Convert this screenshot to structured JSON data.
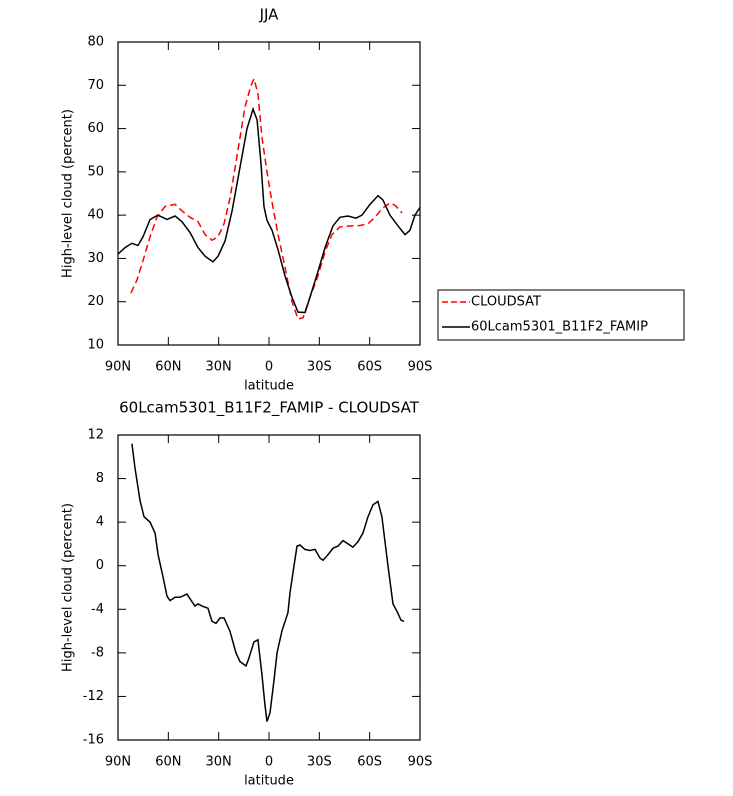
{
  "chart_data": [
    {
      "type": "line",
      "title": "JJA",
      "xlabel": "latitude",
      "ylabel": "High-level cloud (percent)",
      "xlim": [
        90,
        -90
      ],
      "ylim": [
        10,
        80
      ],
      "xticks": [
        {
          "value": 90,
          "label": "90N"
        },
        {
          "value": 60,
          "label": "60N"
        },
        {
          "value": 30,
          "label": "30N"
        },
        0,
        {
          "value": -30,
          "label": "30S"
        },
        {
          "value": -60,
          "label": "60S"
        },
        {
          "value": -90,
          "label": "90S"
        }
      ],
      "yticks": [
        10,
        20,
        30,
        40,
        50,
        60,
        70,
        80
      ],
      "legend": "right",
      "series": [
        {
          "name": "CLOUDSAT",
          "color": "#ff0000",
          "line_style": "dashed",
          "x": [
            82.3,
            78.7,
            75.1,
            70.9,
            66.8,
            62,
            56,
            51.9,
            47.1,
            42.3,
            38.1,
            34,
            30.4,
            26.8,
            23.2,
            18.5,
            14.3,
            10.7,
            8.9,
            6.6,
            4.2,
            1.2,
            -1.8,
            -5.4,
            -9.5,
            -13.7,
            -17.3,
            -20.3,
            -24.4,
            -29.2,
            -33.4,
            -37.5,
            -42.3,
            -48.3,
            -54.2,
            -59,
            -63.2,
            -67.3,
            -72.1,
            -75.1,
            -79.3
          ],
          "values": [
            22,
            25,
            29.5,
            35,
            39.5,
            42,
            42.5,
            41,
            39.5,
            38.5,
            35.5,
            34.2,
            35,
            38,
            44,
            55,
            65,
            70,
            71.5,
            68,
            58,
            50,
            43,
            35.5,
            28,
            20,
            16,
            16.3,
            21,
            26,
            31.5,
            35.5,
            37.3,
            37.5,
            37.6,
            38,
            39.5,
            41.5,
            42.8,
            42.3,
            40.5
          ]
        },
        {
          "name": "60Lcam5301_B11F2_FAMIP",
          "color": "#000000",
          "line_style": "solid",
          "x": [
            90,
            85.8,
            81.7,
            78.1,
            75.1,
            70.9,
            66.2,
            60.8,
            56,
            51.9,
            47.1,
            42.3,
            38.1,
            33.4,
            30.4,
            26.2,
            22,
            17.3,
            13.1,
            9.5,
            7.1,
            4.8,
            3,
            1.2,
            -1.8,
            -5.4,
            -9.5,
            -13.7,
            -17.3,
            -21.5,
            -24.4,
            -29.2,
            -33.4,
            -38.1,
            -42.3,
            -47.1,
            -51.8,
            -55.4,
            -60.2,
            -65,
            -67.9,
            -72.1,
            -76.9,
            -81.1,
            -84,
            -87,
            -90
          ],
          "values": [
            31,
            32.5,
            33.5,
            33,
            35,
            39,
            40,
            39,
            39.8,
            38.5,
            36,
            32.5,
            30.5,
            29.2,
            30.5,
            34,
            41,
            51,
            60,
            64.5,
            62,
            52,
            42,
            38.8,
            36.5,
            32,
            26,
            21,
            17.6,
            17.5,
            21,
            27,
            32.5,
            37.5,
            39.5,
            39.8,
            39.3,
            40,
            42.5,
            44.5,
            43.5,
            40,
            37.5,
            35.5,
            36.5,
            40,
            41.8
          ]
        }
      ]
    },
    {
      "type": "line",
      "title": "60Lcam5301_B11F2_FAMIP - CLOUDSAT",
      "xlabel": "latitude",
      "ylabel": "High-level cloud (percent)",
      "xlim": [
        90,
        -90
      ],
      "ylim": [
        -16,
        12
      ],
      "xticks": [
        {
          "value": 90,
          "label": "90N"
        },
        {
          "value": 60,
          "label": "60N"
        },
        {
          "value": 30,
          "label": "30N"
        },
        0,
        {
          "value": -30,
          "label": "30S"
        },
        {
          "value": -60,
          "label": "60S"
        },
        {
          "value": -90,
          "label": "90S"
        }
      ],
      "yticks": [
        -16,
        -12,
        -8,
        -4,
        0,
        4,
        8,
        12
      ],
      "series": [
        {
          "color": "#000000",
          "line_style": "solid",
          "x": [
            81.7,
            79.9,
            76.9,
            74.5,
            70.9,
            67.9,
            66.1,
            63.2,
            60.8,
            59,
            56,
            53.1,
            48.9,
            45.9,
            44.1,
            42.3,
            39.9,
            36.4,
            34,
            31.6,
            29.2,
            26.8,
            23.3,
            19.7,
            17.3,
            13.7,
            12,
            9,
            6.6,
            4.2,
            2.4,
            1.2,
            -0.6,
            -3,
            -4.8,
            -7.7,
            -11.3,
            -12.5,
            -14.9,
            -16.7,
            -18.5,
            -21.4,
            -24.4,
            -27.4,
            -30.4,
            -32.2,
            -35.1,
            -38.1,
            -41.1,
            -44.1,
            -47.1,
            -50,
            -53,
            -56,
            -59,
            -62,
            -64.9,
            -67.3,
            -70.9,
            -73.9,
            -76.3,
            -78.7,
            -80.5
          ],
          "values": [
            11.2,
            9,
            6,
            4.5,
            4,
            3,
            1,
            -1,
            -2.8,
            -3.2,
            -2.9,
            -2.9,
            -2.6,
            -3.3,
            -3.7,
            -3.5,
            -3.7,
            -3.9,
            -5.1,
            -5.3,
            -4.8,
            -4.8,
            -6,
            -8,
            -8.8,
            -9.2,
            -8.5,
            -7,
            -6.8,
            -10,
            -12.8,
            -14.3,
            -13.5,
            -10.5,
            -8,
            -6,
            -4.3,
            -2.5,
            0,
            1.8,
            1.9,
            1.5,
            1.4,
            1.5,
            0.7,
            0.5,
            1,
            1.6,
            1.8,
            2.3,
            2,
            1.7,
            2.2,
            3,
            4.5,
            5.6,
            5.9,
            4.5,
            0,
            -3.5,
            -4.2,
            -5,
            -5.1
          ]
        }
      ]
    }
  ]
}
